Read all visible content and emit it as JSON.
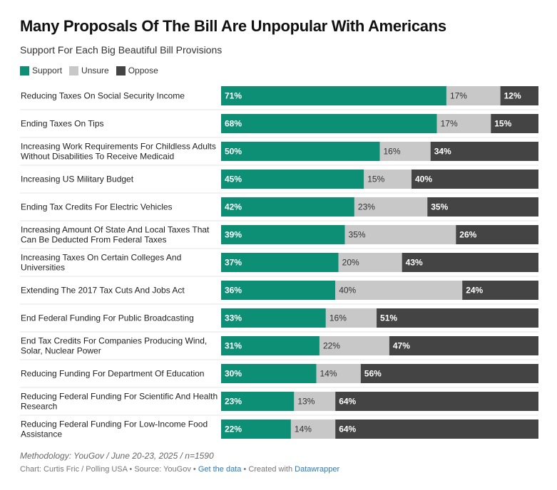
{
  "header": {
    "title": "Many Proposals Of The Bill Are Unpopular With Americans",
    "subtitle": "Support For Each Big Beautiful Bill Provisions"
  },
  "colors": {
    "support": "#0c8f75",
    "unsure": "#c8c8c8",
    "oppose": "#444444"
  },
  "footer": {
    "methodology": "Methodology: YouGov / June 20-23, 2025 / n=1590",
    "credit_prefix": "Chart: Curtis Fric / Polling USA • Source: YouGov • ",
    "get_data": "Get the data",
    "created_with": " • Created with ",
    "datawrapper": "Datawrapper"
  },
  "chart_data": {
    "type": "bar",
    "orientation": "horizontal",
    "stacked": true,
    "unit": "%",
    "legend_placement": "top-left",
    "categories": [
      [
        "Reducing Taxes On Social Security Income"
      ],
      [
        "Ending Taxes On Tips"
      ],
      [
        "Increasing Work Requirements For Childless Adults",
        "Without Disabilities To Receive Medicaid"
      ],
      [
        "Increasing US Military Budget"
      ],
      [
        "Ending Tax Credits For Electric Vehicles"
      ],
      [
        "Increasing Amount Of State And Local Taxes That",
        "Can Be Deducted From Federal Taxes"
      ],
      [
        "Increasing Taxes On Certain Colleges And",
        "Universities"
      ],
      [
        "Extending The 2017 Tax Cuts And Jobs Act"
      ],
      [
        "End Federal Funding For Public Broadcasting"
      ],
      [
        "End Tax Credits For Companies Producing Wind,",
        "Solar, Nuclear Power"
      ],
      [
        "Reducing Funding For Department Of Education"
      ],
      [
        "Reducing Federal Funding For Scientific And Health",
        "Research"
      ],
      [
        "Reducing Federal Funding For Low-Income Food",
        "Assistance"
      ]
    ],
    "series": [
      {
        "name": "Support",
        "values": [
          71,
          68,
          50,
          45,
          42,
          39,
          37,
          36,
          33,
          31,
          30,
          23,
          22
        ]
      },
      {
        "name": "Unsure",
        "values": [
          17,
          17,
          16,
          15,
          23,
          35,
          20,
          40,
          16,
          22,
          14,
          13,
          14
        ]
      },
      {
        "name": "Oppose",
        "values": [
          12,
          15,
          34,
          40,
          35,
          26,
          43,
          24,
          51,
          47,
          56,
          64,
          64
        ]
      }
    ]
  }
}
